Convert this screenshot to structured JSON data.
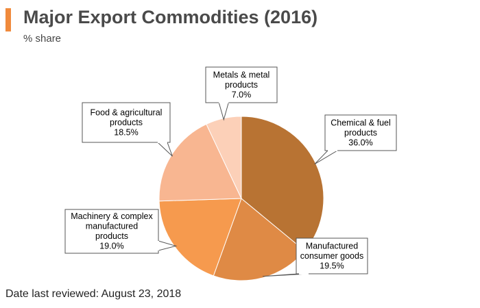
{
  "header": {
    "title": "Major Export Commodities (2016)",
    "subtitle": "% share"
  },
  "footer": {
    "text": "Date last reviewed: August 23, 2018"
  },
  "colors": {
    "accent": "#f08a3c"
  },
  "chart_data": {
    "type": "pie",
    "title": "Major Export Commodities (2016)",
    "subtitle": "% share",
    "slices": [
      {
        "label": [
          "Chemical & fuel",
          "products"
        ],
        "value_text": "36.0%",
        "value": 36.0,
        "color": "#b87333"
      },
      {
        "label": [
          "Manufactured",
          "consumer goods"
        ],
        "value_text": "19.5%",
        "value": 19.5,
        "color": "#df8a45"
      },
      {
        "label": [
          "Machinery & complex",
          "manufactured",
          "products"
        ],
        "value_text": "19.0%",
        "value": 19.0,
        "color": "#f69a4e"
      },
      {
        "label": [
          "Food & agricultural",
          "products"
        ],
        "value_text": "18.5%",
        "value": 18.5,
        "color": "#f8b691"
      },
      {
        "label": [
          "Metals & metal",
          "products"
        ],
        "value_text": "7.0%",
        "value": 7.0,
        "color": "#fcd0b8"
      }
    ],
    "legend": "none"
  }
}
